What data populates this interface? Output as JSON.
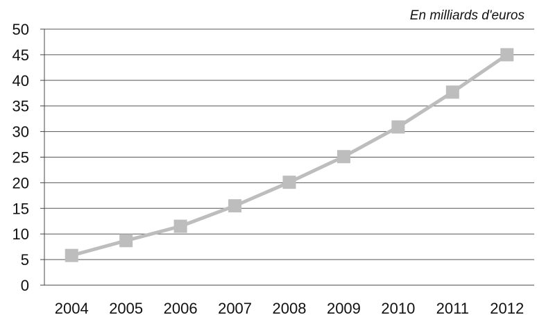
{
  "chart_data": {
    "type": "line",
    "title": "",
    "subtitle": "",
    "unit_label": "En milliards d'euros",
    "xlabel": "",
    "ylabel": "",
    "categories": [
      "2004",
      "2005",
      "2006",
      "2007",
      "2008",
      "2009",
      "2010",
      "2011",
      "2012"
    ],
    "series": [
      {
        "values": [
          5.8,
          8.7,
          11.5,
          15.5,
          20.1,
          25.1,
          30.9,
          37.7,
          45.0
        ]
      }
    ],
    "ylim": [
      0,
      50
    ],
    "yticks": [
      0,
      5,
      10,
      15,
      20,
      25,
      30,
      35,
      40,
      45,
      50
    ],
    "grid": true,
    "legend": "none",
    "colors": {
      "series": "#bdbdbd",
      "grid": "#555555",
      "axis": "#444444",
      "text": "#111111"
    },
    "marker": "square"
  }
}
